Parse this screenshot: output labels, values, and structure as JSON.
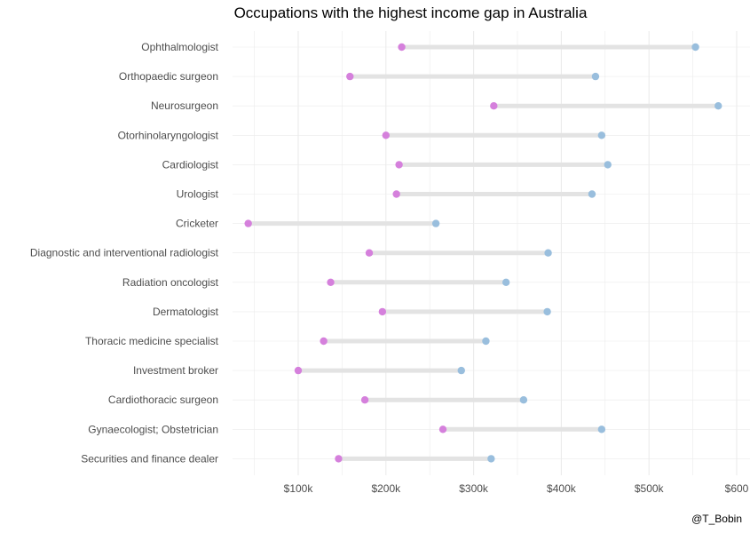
{
  "chart_data": {
    "type": "dumbbell",
    "title": "Occupations with the highest income gap in Australia",
    "xlabel": "",
    "ylabel": "",
    "xlim": [
      50,
      600
    ],
    "x_ticks": [
      {
        "value": 100,
        "label": "$100k"
      },
      {
        "value": 200,
        "label": "$200k"
      },
      {
        "value": 300,
        "label": "$300k"
      },
      {
        "value": 400,
        "label": "$400k"
      },
      {
        "value": 500,
        "label": "$500k"
      },
      {
        "value": 600,
        "label": "$600"
      }
    ],
    "grid": true,
    "categories": [
      "Ophthalmologist",
      "Orthopaedic surgeon",
      "Neurosurgeon",
      "Otorhinolaryngologist",
      "Cardiologist",
      "Urologist",
      "Cricketer",
      "Diagnostic and interventional radiologist",
      "Radiation oncologist",
      "Dermatologist",
      "Thoracic medicine specialist",
      "Investment broker",
      "Cardiothoracic surgeon",
      "Gynaecologist; Obstetrician",
      "Securities and finance dealer"
    ],
    "series": [
      {
        "values": [
          218,
          159,
          323,
          200,
          215,
          212,
          43,
          181,
          137,
          196,
          129,
          100,
          176,
          265,
          146
        ],
        "color": "#d580dc"
      },
      {
        "values": [
          553,
          439,
          579,
          446,
          453,
          435,
          257,
          385,
          337,
          384,
          314,
          286,
          357,
          446,
          320
        ],
        "color": "#99bedd"
      }
    ],
    "segment_color": "#e3e3e3",
    "grid_color": "#ebebeb"
  },
  "credit": "@T_Bobin"
}
